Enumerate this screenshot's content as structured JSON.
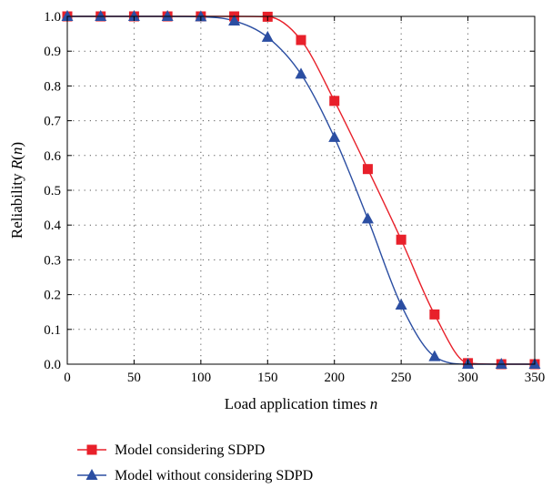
{
  "chart_data": {
    "type": "line",
    "xlabel": "Load application times",
    "xlabel_var": "n",
    "ylabel": "Reliability",
    "ylabel_func": "R",
    "ylabel_var": "n",
    "xlim": [
      0,
      350
    ],
    "ylim": [
      0.0,
      1.0
    ],
    "x_ticks": [
      "0",
      "50",
      "100",
      "150",
      "200",
      "250",
      "300",
      "350"
    ],
    "y_ticks": [
      "0.0",
      "0.1",
      "0.2",
      "0.3",
      "0.4",
      "0.5",
      "0.6",
      "0.7",
      "0.8",
      "0.9",
      "1.0"
    ],
    "grid": true,
    "legend_position": "bottom",
    "series": [
      {
        "name": "Model considering SDPD",
        "color": "#e8202a",
        "marker": "square",
        "x": [
          0,
          25,
          50,
          75,
          100,
          125,
          150,
          175,
          200,
          225,
          250,
          275,
          300,
          325,
          350
        ],
        "y": [
          1.0,
          1.0,
          1.0,
          1.0,
          1.0,
          1.0,
          0.999,
          0.932,
          0.757,
          0.561,
          0.358,
          0.143,
          0.003,
          0.0,
          0.0
        ]
      },
      {
        "name": "Model without considering SDPD",
        "color": "#2b4ea2",
        "marker": "triangle",
        "x": [
          0,
          25,
          50,
          75,
          100,
          125,
          150,
          175,
          200,
          225,
          250,
          275,
          300,
          325,
          350
        ],
        "y": [
          1.0,
          1.0,
          1.0,
          1.0,
          0.999,
          0.987,
          0.94,
          0.834,
          0.652,
          0.418,
          0.17,
          0.022,
          0.0,
          0.0,
          0.0
        ]
      }
    ]
  }
}
